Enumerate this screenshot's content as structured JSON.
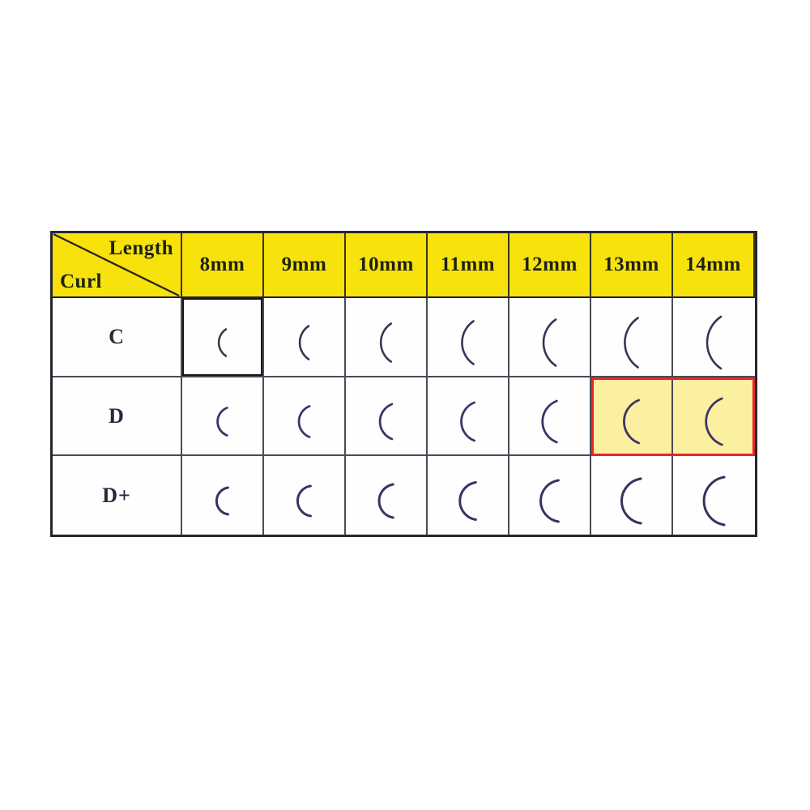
{
  "page": {
    "background": "#ffffff"
  },
  "table": {
    "corner": {
      "top_label": "Length",
      "bottom_label": "Curl"
    },
    "columns": [
      "8mm",
      "9mm",
      "10mm",
      "11mm",
      "12mm",
      "13mm",
      "14mm"
    ],
    "rows": [
      {
        "label": "C",
        "sweep_deg": 112,
        "stroke_width": 2.6,
        "arc_color": "#3a3456",
        "arc_heights": [
          33,
          41,
          47,
          53,
          57,
          61,
          64
        ]
      },
      {
        "label": "D",
        "sweep_deg": 138,
        "stroke_width": 2.8,
        "arc_color": "#3d3466",
        "arc_heights": [
          34,
          38,
          43,
          47,
          51,
          53,
          57
        ]
      },
      {
        "label": "D+",
        "sweep_deg": 162,
        "stroke_width": 3.0,
        "arc_color": "#393260",
        "arc_heights": [
          33,
          37,
          41,
          46,
          51,
          55,
          59
        ]
      }
    ],
    "colors": {
      "header_bg": "#f8e20c",
      "highlight_bg": "#fbefa0",
      "highlight_border": "#e9242b",
      "grid_line": "#4b4b56",
      "outer_border": "#26262e",
      "text": "#1d2113",
      "selected_cell_border": "#161616",
      "selected_cell_arc": "#403c3c"
    },
    "selected_cell": {
      "row": "C",
      "column": "8mm"
    },
    "highlight": {
      "row": "D",
      "columns": [
        "13mm",
        "14mm"
      ]
    }
  },
  "chart_data": {
    "type": "table",
    "title": "",
    "corner_labels": {
      "top_right": "Length",
      "bottom_left": "Curl"
    },
    "columns": [
      "8mm",
      "9mm",
      "10mm",
      "11mm",
      "12mm",
      "13mm",
      "14mm"
    ],
    "row_labels": [
      "C",
      "D",
      "D+"
    ],
    "cell_content": "Each cell contains a curved eyelash curl sample stroke; arc size increases from 8mm to 14mm across columns, and curl tightness increases from row C to D to D+.",
    "highlighted_cells": [
      {
        "row": "D",
        "column": "13mm"
      },
      {
        "row": "D",
        "column": "14mm"
      }
    ],
    "selected_cell": {
      "row": "C",
      "column": "8mm"
    },
    "legend_position": "none",
    "grid": true
  }
}
